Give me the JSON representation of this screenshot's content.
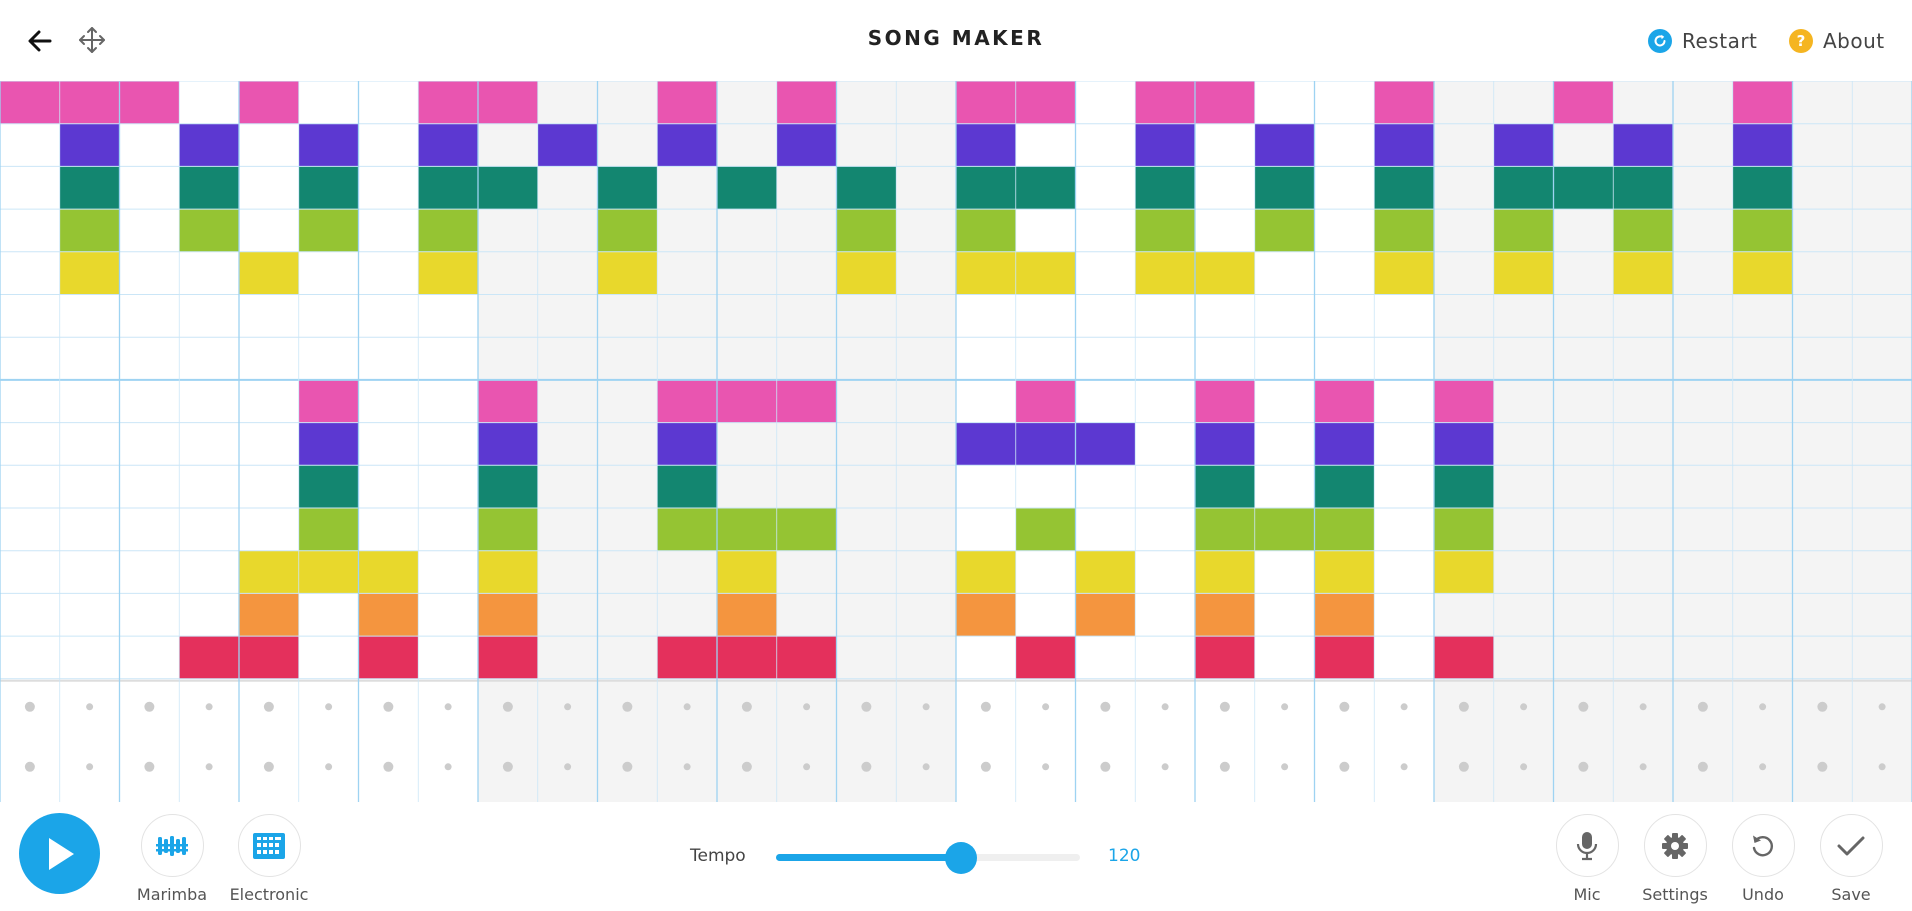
{
  "app": {
    "title": "SONG MAKER",
    "restart_label": "Restart",
    "about_label": "About"
  },
  "colors": {
    "accent": "#1ba5e8",
    "about": "#f5b521",
    "grid_line": "#cbe6f7",
    "grid_line_bar": "#9ed3f2",
    "shade": "#f4f4f4",
    "dot": "#cccccc",
    "rows": [
      "#e955b0",
      "#5c38d1",
      "#138670",
      "#95c433",
      "#e8d82c",
      "#e8d82c",
      "#e8d82c",
      "#e955b0",
      "#5c38d1",
      "#138670",
      "#95c433",
      "#e8d82c",
      "#f4953f",
      "#e4305c"
    ]
  },
  "grid": {
    "columns": 32,
    "melody_rows": 14,
    "octave_split_row": 7,
    "shaded_columns": [
      8,
      9,
      10,
      11,
      12,
      13,
      14,
      15,
      24,
      25,
      26,
      27,
      28,
      29,
      30,
      31
    ],
    "notes": [
      [
        0,
        1,
        2,
        4,
        7,
        8,
        11,
        13,
        16,
        17,
        19,
        20,
        23,
        26,
        29
      ],
      [
        1,
        3,
        5,
        7,
        9,
        11,
        13,
        16,
        19,
        21,
        23,
        25,
        27,
        29
      ],
      [
        1,
        3,
        5,
        7,
        8,
        10,
        12,
        14,
        16,
        17,
        19,
        21,
        23,
        25,
        26,
        27,
        29
      ],
      [
        1,
        3,
        5,
        7,
        10,
        14,
        16,
        19,
        21,
        23,
        25,
        27,
        29
      ],
      [
        1,
        4,
        7,
        10,
        14,
        16,
        17,
        19,
        20,
        23,
        25,
        27,
        29
      ],
      [],
      [],
      [
        5,
        8,
        11,
        12,
        13,
        17,
        20,
        22,
        24
      ],
      [
        5,
        8,
        11,
        16,
        17,
        18,
        20,
        22,
        24
      ],
      [
        5,
        8,
        11,
        20,
        22,
        24
      ],
      [
        5,
        8,
        11,
        12,
        13,
        17,
        20,
        21,
        22,
        24
      ],
      [
        4,
        5,
        6,
        8,
        12,
        16,
        18,
        20,
        22,
        24
      ],
      [
        4,
        6,
        8,
        12,
        16,
        18,
        20,
        22
      ],
      [
        3,
        4,
        6,
        8,
        11,
        12,
        13,
        17,
        20,
        22,
        24
      ]
    ],
    "rhythm_rows": 2
  },
  "toolbar": {
    "instrument_label": "Marimba",
    "percussion_label": "Electronic",
    "tempo_label": "Tempo",
    "tempo_value": "120",
    "tempo_fraction": 0.61,
    "mic_label": "Mic",
    "settings_label": "Settings",
    "undo_label": "Undo",
    "save_label": "Save"
  },
  "icons": {
    "back": "arrow-left-icon",
    "move": "move-arrows-icon",
    "restart": "restart-icon",
    "about": "question-icon",
    "play": "play-icon",
    "instrument": "marimba-icon",
    "percussion": "electronic-drum-icon",
    "mic": "mic-icon",
    "settings": "gear-icon",
    "undo": "undo-icon",
    "save": "checkmark-icon"
  }
}
